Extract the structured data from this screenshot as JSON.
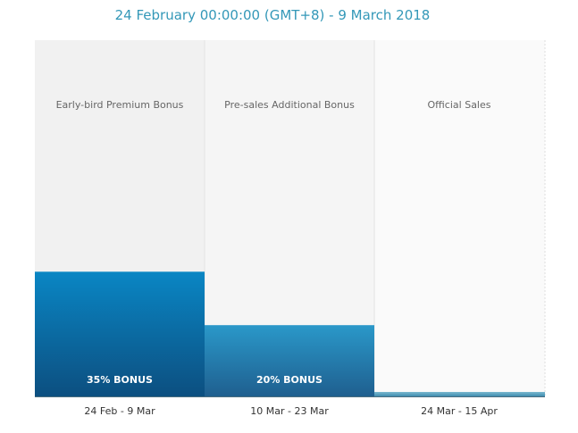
{
  "header": {
    "period": "24 February 00:00:00 (GMT+8) - 9 March 2018"
  },
  "chart_data": {
    "type": "bar",
    "categories": [
      "24 Feb - 9 Mar",
      "10 Mar - 23 Mar",
      "24 Mar - 15 Apr"
    ],
    "column_titles": [
      "Early-bird Premium Bonus",
      "Pre-sales Additional Bonus",
      "Official Sales"
    ],
    "values": [
      35,
      20,
      0
    ],
    "bar_labels": [
      "35% BONUS",
      "20% BONUS",
      ""
    ],
    "ylim": [
      0,
      100
    ],
    "grid": false,
    "colors": {
      "bar_top": "#0a86c4",
      "bar_bottom": "#0c4f80",
      "bar2_top": "#2a98c9",
      "bar2_bottom": "#1f5f8f",
      "bar3": "#5aa3bf",
      "column_bg": "#f2f2f2",
      "column_bg_light": "#fafafa",
      "title": "#3498b8"
    }
  }
}
